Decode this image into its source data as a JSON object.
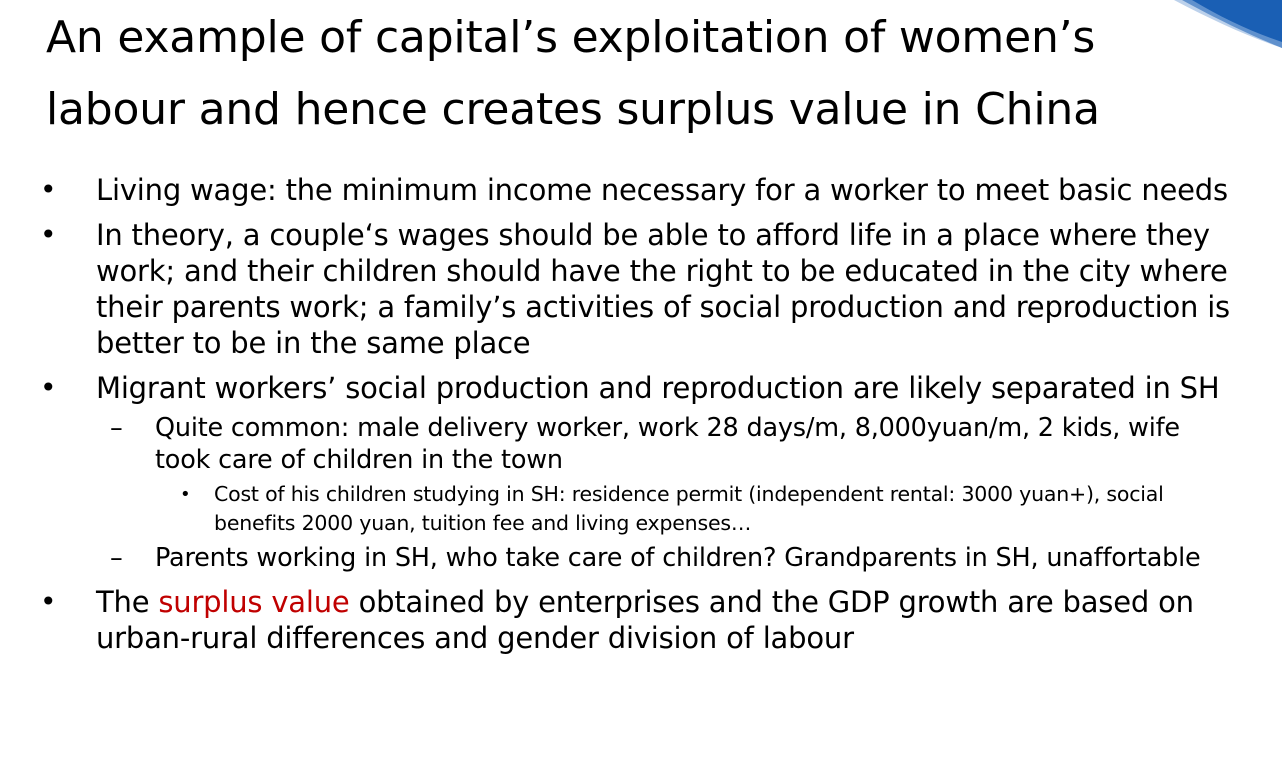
{
  "title": "An example of capital’s exploitation of women’s labour and hence creates surplus value in China",
  "colors": {
    "background": "#ffffff",
    "text": "#000000",
    "emphasis": "#c00000",
    "corner_accent": "#1a5fb4"
  },
  "bullets": [
    {
      "text": "Living wage: the minimum income necessary for a worker to meet basic needs"
    },
    {
      "text": "In theory, a couple‘s wages should be able to afford life in a place where they work; and their children should have the right to be educated in the city where their parents work; a family’s activities of social production and reproduction is better to be in the same place"
    },
    {
      "text": "Migrant workers’ social production and reproduction are likely separated in SH",
      "sub": [
        {
          "text": "Quite common: male delivery worker, work 28 days/m, 8,000yuan/m, 2 kids, wife took care of children in the town",
          "sub": [
            {
              "text": "Cost of his children studying in SH: residence permit (independent rental: 3000 yuan+), social benefits 2000 yuan, tuition fee and living expenses…"
            }
          ]
        },
        {
          "text": "Parents working in SH, who take care of children? Grandparents in SH, unaffortable"
        }
      ]
    },
    {
      "text_before": "The ",
      "highlight": "surplus value",
      "text_after": " obtained by enterprises and the GDP growth are based on urban-rural differences and gender division of labour"
    }
  ]
}
